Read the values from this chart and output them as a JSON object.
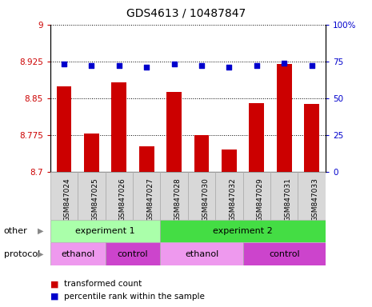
{
  "title": "GDS4613 / 10487847",
  "samples": [
    "GSM847024",
    "GSM847025",
    "GSM847026",
    "GSM847027",
    "GSM847028",
    "GSM847030",
    "GSM847032",
    "GSM847029",
    "GSM847031",
    "GSM847033"
  ],
  "bar_values": [
    8.875,
    8.778,
    8.882,
    8.752,
    8.863,
    8.775,
    8.745,
    8.84,
    8.92,
    8.838
  ],
  "dot_values": [
    73,
    72,
    72,
    71,
    73,
    72,
    71,
    72,
    74,
    72
  ],
  "ylim_left": [
    8.7,
    9.0
  ],
  "ylim_right": [
    0,
    100
  ],
  "yticks_left": [
    8.7,
    8.775,
    8.85,
    8.925,
    9.0
  ],
  "yticks_right": [
    0,
    25,
    50,
    75,
    100
  ],
  "ytick_labels_left": [
    "8.7",
    "8.775",
    "8.85",
    "8.925",
    "9"
  ],
  "ytick_labels_right": [
    "0",
    "25",
    "50",
    "75",
    "100%"
  ],
  "bar_color": "#cc0000",
  "dot_color": "#0000cc",
  "other_row": [
    {
      "label": "experiment 1",
      "start": 0,
      "end": 4,
      "color": "#aaffaa"
    },
    {
      "label": "experiment 2",
      "start": 4,
      "end": 10,
      "color": "#44dd44"
    }
  ],
  "protocol_row": [
    {
      "label": "ethanol",
      "start": 0,
      "end": 2,
      "color": "#ee99ee"
    },
    {
      "label": "control",
      "start": 2,
      "end": 4,
      "color": "#cc44cc"
    },
    {
      "label": "ethanol",
      "start": 4,
      "end": 7,
      "color": "#ee99ee"
    },
    {
      "label": "control",
      "start": 7,
      "end": 10,
      "color": "#cc44cc"
    }
  ],
  "legend_items": [
    {
      "label": "transformed count",
      "color": "#cc0000"
    },
    {
      "label": "percentile rank within the sample",
      "color": "#0000cc"
    }
  ],
  "bar_width": 0.55,
  "tick_label_color_left": "#cc0000",
  "tick_label_color_right": "#0000cc",
  "sample_bg_color": "#d8d8d8",
  "sample_border_color": "#aaaaaa"
}
